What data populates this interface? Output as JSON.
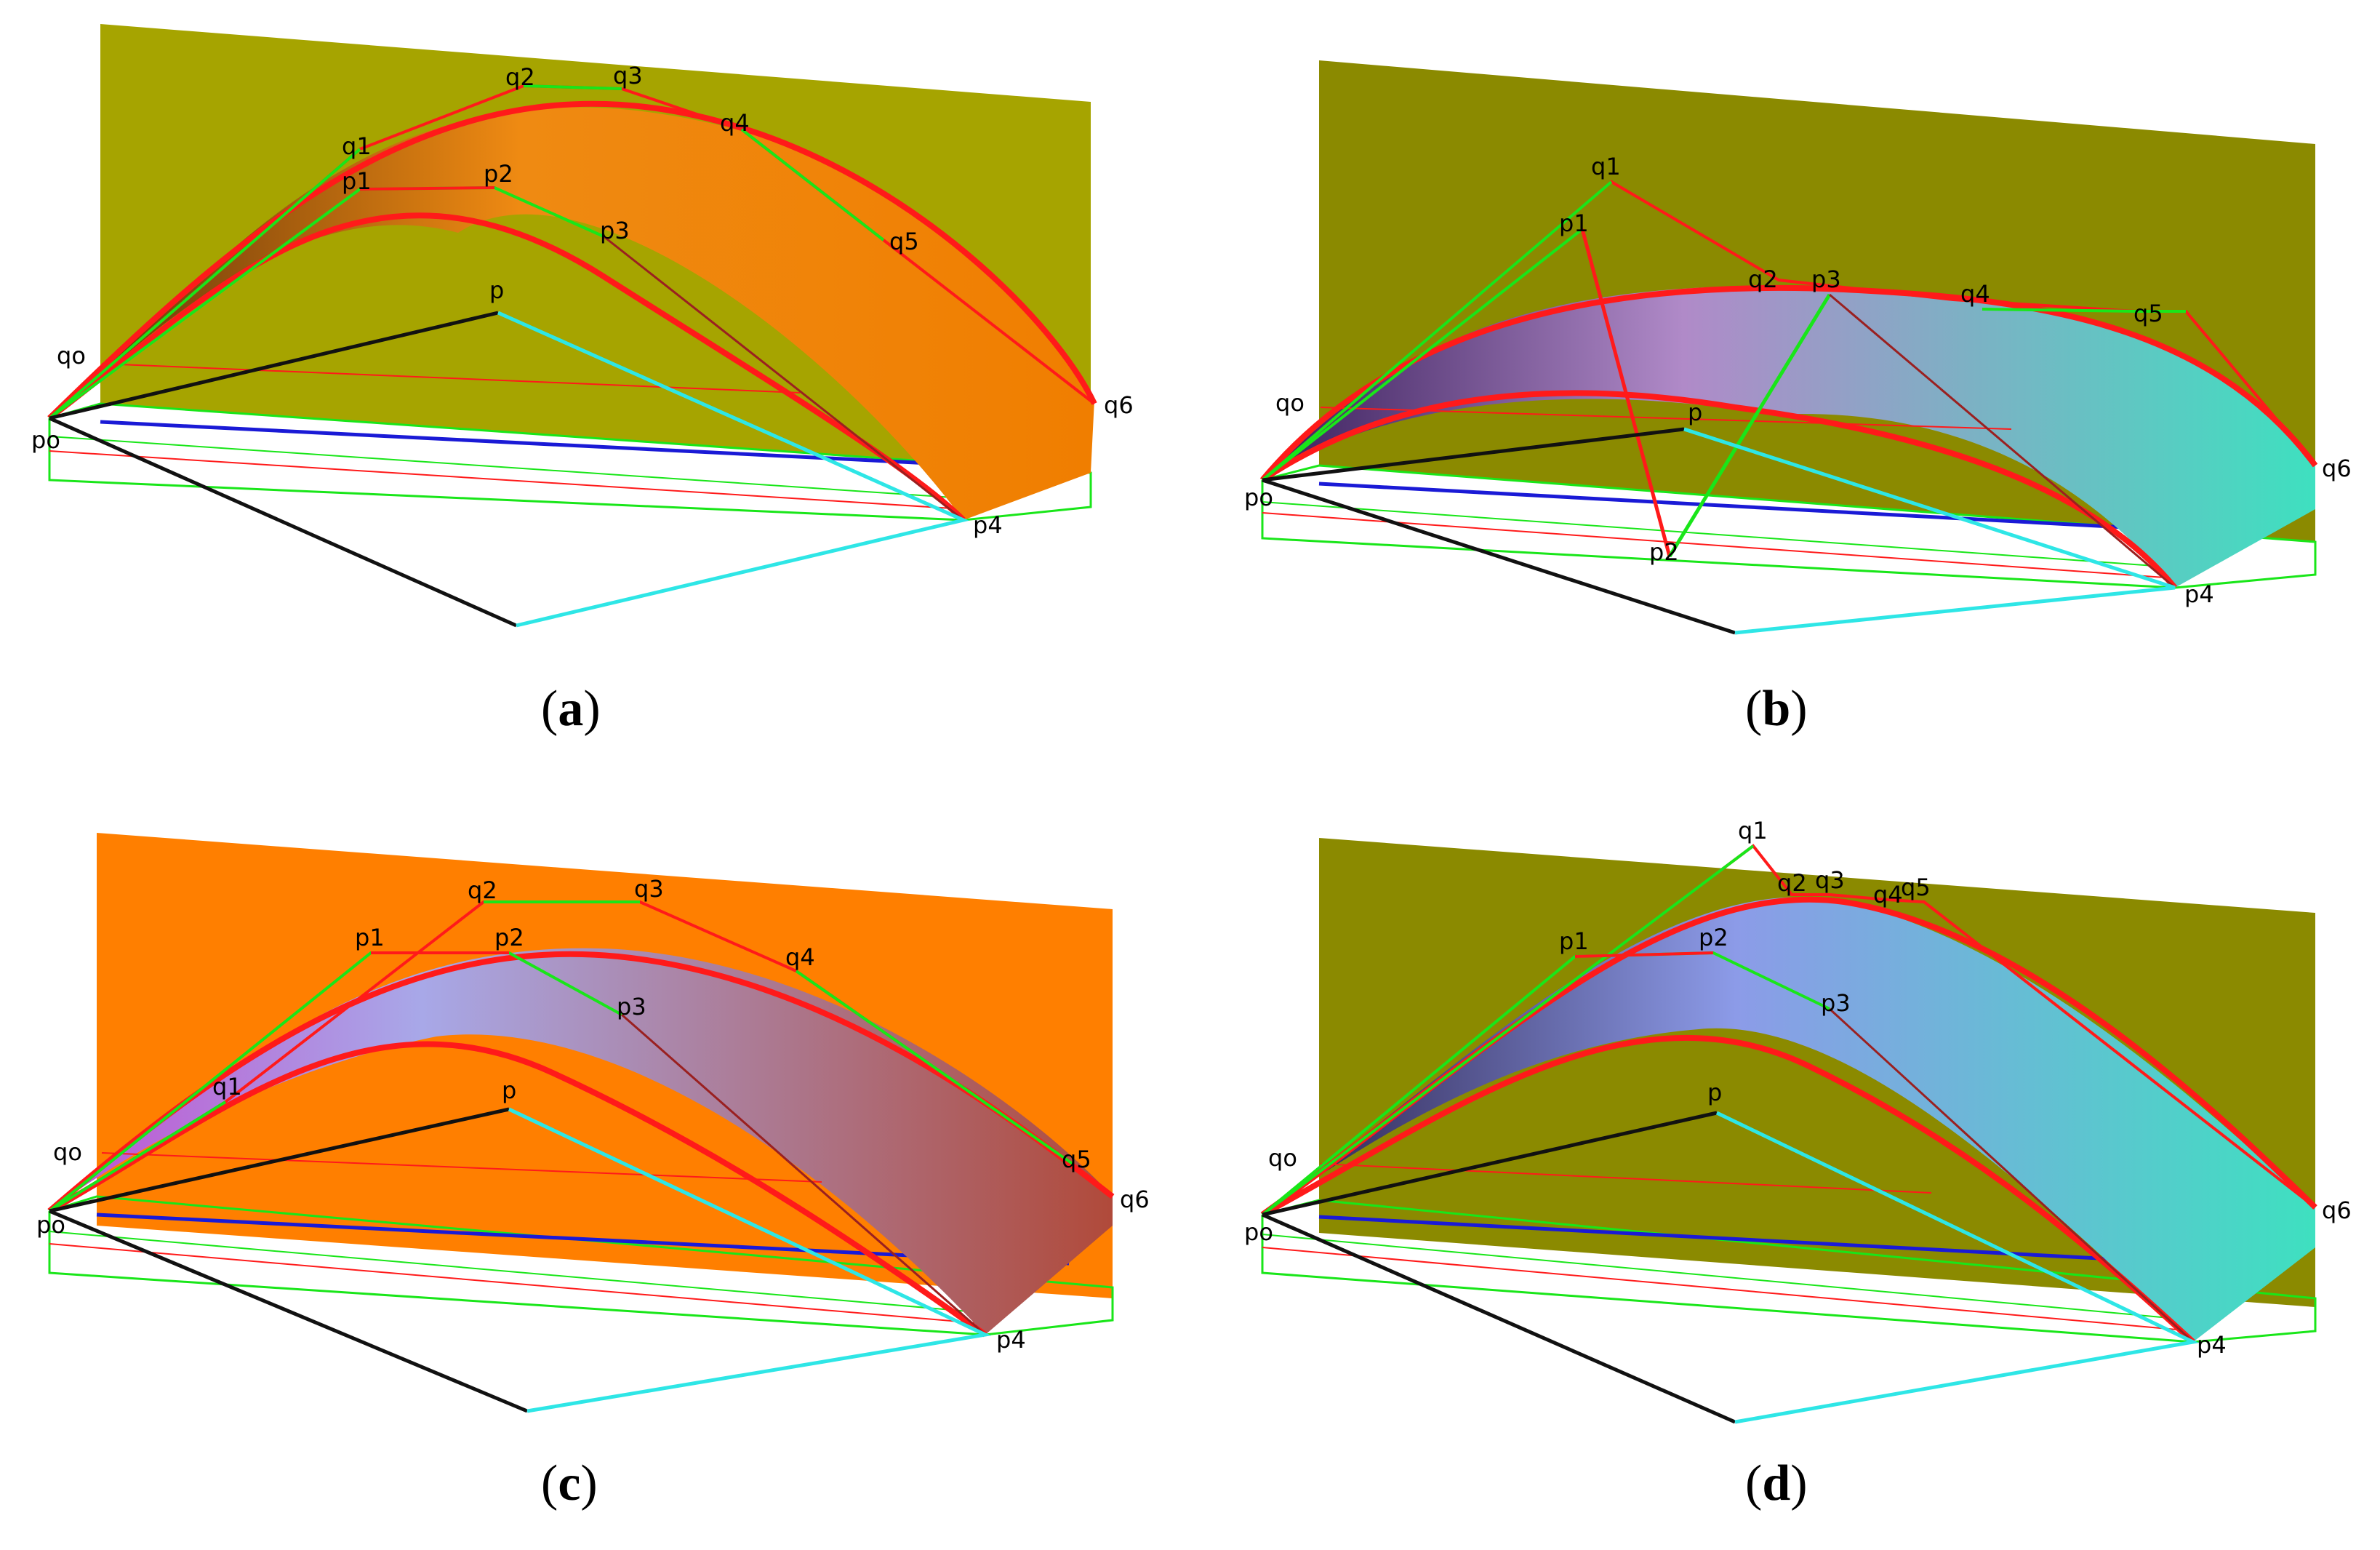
{
  "panels": [
    {
      "id": "a",
      "caption_open": "(",
      "caption_letter": "a",
      "caption_close": ")",
      "plane_color": "#a6a400",
      "surface_colors": [
        "#5a2f0a",
        "#ef8a12",
        "#f07e00"
      ],
      "labels": {
        "q0": "qo",
        "q1": "q1",
        "q2": "q2",
        "q3": "q3",
        "q4": "q4",
        "q5": "q5",
        "q6": "q6",
        "p0": "po",
        "p1": "p1",
        "p2": "p2",
        "p3": "p3",
        "p4": "p4",
        "p": "p"
      }
    },
    {
      "id": "b",
      "caption_open": "(",
      "caption_letter": "b",
      "caption_close": ")",
      "plane_color": "#8b8a00",
      "surface_colors": [
        "#3a1f5c",
        "#b08ac8",
        "#3ee0c0"
      ],
      "labels": {
        "q0": "qo",
        "q1": "q1",
        "q2": "q2",
        "q3": "",
        "q4": "q4",
        "q5": "q5",
        "q6": "q6",
        "p0": "po",
        "p1": "p1",
        "p2": "p2",
        "p3": "p3",
        "p4": "p4",
        "p": "p"
      }
    },
    {
      "id": "c",
      "caption_open": "(",
      "caption_letter": "c",
      "caption_close": ")",
      "plane_color": "#ff7f00",
      "surface_colors": [
        "#c050d0",
        "#a8a8e8",
        "#b04a3a"
      ],
      "labels": {
        "q0": "qo",
        "q1": "q1",
        "q2": "q2",
        "q3": "q3",
        "q4": "q4",
        "q5": "q5",
        "q6": "q6",
        "p0": "po",
        "p1": "p1",
        "p2": "p2",
        "p3": "p3",
        "p4": "p4",
        "p": "p"
      }
    },
    {
      "id": "d",
      "caption_open": "(",
      "caption_letter": "d",
      "caption_close": ")",
      "plane_color": "#8b8a00",
      "surface_colors": [
        "#2a1f4a",
        "#8c9be8",
        "#3ee0c0"
      ],
      "labels": {
        "q0": "qo",
        "q1": "q1",
        "q2": "q2",
        "q3": "q3",
        "q4": "q4",
        "q5": "q5",
        "q6": "q6",
        "p0": "po",
        "p1": "p1",
        "p2": "p2",
        "p3": "p3",
        "p4": "p4",
        "p": "p"
      }
    }
  ],
  "line_colors": {
    "red": "#ff1a1a",
    "green": "#19e619",
    "cyan": "#2ee6e6",
    "blue": "#1a1ad6",
    "black": "#111111",
    "darkred": "#9a2020"
  }
}
